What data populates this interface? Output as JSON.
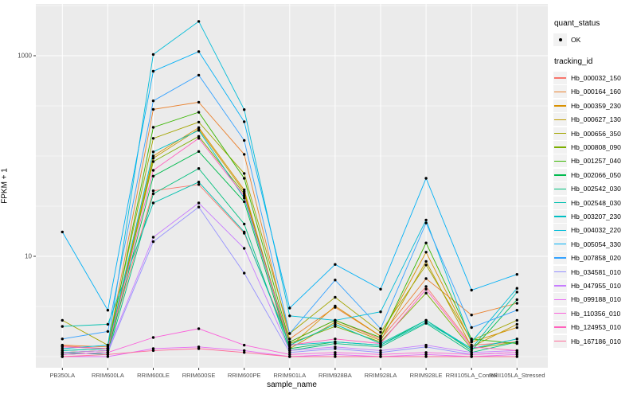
{
  "chart_data": {
    "type": "line",
    "title": "",
    "xlabel": "sample_name",
    "ylabel": "FPKM + 1",
    "y_scale": "log10",
    "grid": true,
    "panel_bg": "#EBEBEB",
    "grid_color": "#FFFFFF",
    "point_color": "#000000",
    "tick_color": "#333333",
    "tick_label_color": "#4D4D4D",
    "y_major_ticks": [
      10,
      1000
    ],
    "y_major_tick_labels": [
      "10",
      "1000"
    ],
    "y_minor_gridlines": [
      1,
      3.162,
      31.62,
      100,
      316.2,
      3162
    ],
    "ylim": [
      0.77,
      3300
    ],
    "legend_position": "right",
    "categories": [
      "PB350LA",
      "RRIM600LA",
      "RRIM600LE",
      "RRIM600SE",
      "RRIM600PE",
      "RRIM901LA",
      "RRIM928BA",
      "RRIM928LA",
      "RRIM928LE",
      "RRII105LA_Control",
      "RRII105LA_Stressed"
    ],
    "series": [
      {
        "name": "Hb_000032_150",
        "color": "#F8766D",
        "values": [
          1.28,
          1.2,
          45,
          52,
          17,
          1.4,
          2.3,
          1.5,
          5.0,
          1.3,
          1.4
        ]
      },
      {
        "name": "Hb_000164_160",
        "color": "#EA8331",
        "values": [
          1.3,
          1.25,
          292,
          344,
          104,
          1.5,
          3.1,
          1.6,
          6.0,
          2.6,
          3.4
        ]
      },
      {
        "name": "Hb_000359_230",
        "color": "#D89000",
        "values": [
          1.1,
          1.15,
          100,
          192,
          46,
          1.25,
          3.2,
          1.6,
          11,
          1.4,
          1.95
        ]
      },
      {
        "name": "Hb_000627_130",
        "color": "#C09B00",
        "values": [
          1.05,
          1.1,
          95,
          185,
          44,
          1.2,
          2.2,
          1.45,
          8.9,
          1.25,
          2.1
        ]
      },
      {
        "name": "Hb_000656_350",
        "color": "#A3A500",
        "values": [
          2.3,
          1.3,
          150,
          218,
          67,
          1.7,
          3.9,
          1.75,
          8.2,
          1.45,
          2.3
        ]
      },
      {
        "name": "Hb_000808_090",
        "color": "#7CAE00",
        "values": [
          1.1,
          1.15,
          88,
          157,
          42,
          1.35,
          2.0,
          1.4,
          4.3,
          1.2,
          1.4
        ]
      },
      {
        "name": "Hb_001257_040",
        "color": "#39B600",
        "values": [
          1.15,
          1.2,
          193,
          273,
          60,
          1.4,
          2.3,
          1.55,
          13.6,
          1.5,
          1.35
        ]
      },
      {
        "name": "Hb_002066_050",
        "color": "#00BB4E",
        "values": [
          1.05,
          1.1,
          63,
          111,
          35,
          1.2,
          1.4,
          1.3,
          2.3,
          1.15,
          3.7
        ]
      },
      {
        "name": "Hb_002542_030",
        "color": "#00BF7D",
        "values": [
          1.1,
          1.05,
          42,
          75,
          21,
          1.15,
          1.35,
          1.25,
          2.15,
          1.1,
          1.4
        ]
      },
      {
        "name": "Hb_002548_030",
        "color": "#00C0AF",
        "values": [
          2.0,
          2.1,
          34,
          55,
          17.5,
          1.3,
          2.1,
          1.35,
          2.3,
          1.2,
          4.4
        ]
      },
      {
        "name": "Hb_003207_230",
        "color": "#00BFC4",
        "values": [
          1.15,
          1.2,
          110,
          180,
          38,
          1.3,
          1.4,
          1.3,
          2.2,
          1.2,
          1.5
        ]
      },
      {
        "name": "Hb_004032_220",
        "color": "#00BCD8",
        "values": [
          1.2,
          1.3,
          1030,
          2200,
          290,
          2.55,
          2.3,
          2.8,
          23,
          1.4,
          4.8
        ]
      },
      {
        "name": "Hb_005054_330",
        "color": "#00B0F6",
        "values": [
          17.5,
          2.9,
          700,
          1100,
          220,
          3.05,
          8.3,
          4.7,
          60,
          4.6,
          6.6
        ]
      },
      {
        "name": "Hb_007858_020",
        "color": "#35A2FF",
        "values": [
          1.5,
          1.78,
          355,
          640,
          143,
          1.7,
          5.8,
          1.9,
          21.5,
          1.95,
          2.9
        ]
      },
      {
        "name": "Hb_034581_010",
        "color": "#9590FF",
        "values": [
          1.05,
          1.1,
          14,
          31,
          6.8,
          1.1,
          1.2,
          1.1,
          1.25,
          1.05,
          1.1
        ]
      },
      {
        "name": "Hb_047955_010",
        "color": "#C77CFF",
        "values": [
          1.1,
          1.15,
          15.5,
          34,
          12,
          1.15,
          1.25,
          1.15,
          1.3,
          1.1,
          1.15
        ]
      },
      {
        "name": "Hb_099188_010",
        "color": "#E76BF3",
        "values": [
          1.0,
          1.0,
          1.2,
          1.25,
          1.15,
          1.0,
          1.05,
          1.0,
          1.05,
          1.0,
          1.05
        ]
      },
      {
        "name": "Hb_110356_010",
        "color": "#FA62DB",
        "values": [
          1.05,
          1.1,
          1.55,
          1.9,
          1.3,
          1.05,
          1.1,
          1.05,
          1.1,
          1.05,
          1.1
        ]
      },
      {
        "name": "Hb_124953_010",
        "color": "#FF62BC",
        "values": [
          1.25,
          1.2,
          72,
          150,
          40,
          1.3,
          1.5,
          1.35,
          4.7,
          1.25,
          1.15
        ]
      },
      {
        "name": "Hb_167186_010",
        "color": "#FF6A98",
        "values": [
          1.0,
          1.05,
          1.15,
          1.2,
          1.1,
          1.0,
          1.0,
          1.0,
          1.0,
          1.0,
          1.0
        ]
      }
    ],
    "legend": {
      "quant_status_title": "quant_status",
      "quant_status_items": [
        {
          "label": "OK",
          "marker": "point"
        }
      ],
      "tracking_id_title": "tracking_id"
    }
  }
}
